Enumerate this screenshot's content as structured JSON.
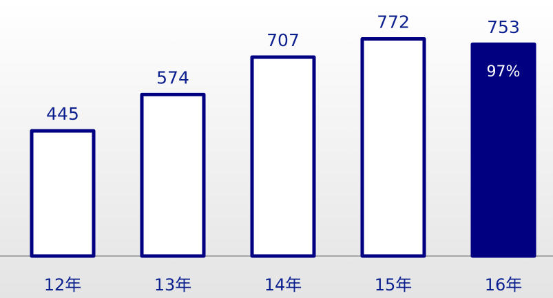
{
  "chart_data": {
    "type": "bar",
    "categories": [
      "12年",
      "13年",
      "14年",
      "15年",
      "16年"
    ],
    "values": [
      445,
      574,
      707,
      772,
      753
    ],
    "highlight_index": 4,
    "annotations": [
      {
        "category": "16年",
        "text": "97%"
      }
    ],
    "title": "",
    "xlabel": "",
    "ylabel": "",
    "ylim": [
      0,
      800
    ],
    "grid": false,
    "legend": "none"
  },
  "colors": {
    "bar_stroke": "#000080",
    "bar_fill": "#ffffff",
    "highlight_fill": "#000080",
    "label_text": "#0b1f8f",
    "axis_line": "#7f7f7f"
  }
}
